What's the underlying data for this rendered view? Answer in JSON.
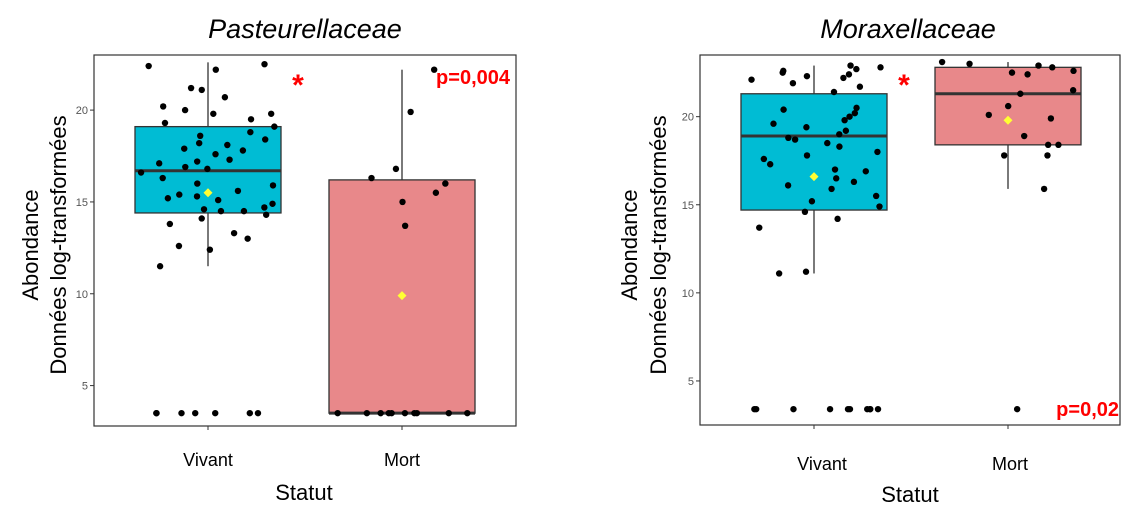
{
  "chart_data": [
    {
      "type": "box",
      "title": "Pasteurellaceae",
      "xlabel": "Statut",
      "ylabel_line1": "Abondance",
      "ylabel_line2": "Données log-transformées",
      "categories": [
        "Vivant",
        "Mort"
      ],
      "y_ticks": [
        5,
        10,
        15,
        20
      ],
      "ylim": [
        2.8,
        23.0
      ],
      "grid": false,
      "significance_marker": "*",
      "p_value": "p=0,004",
      "p_value_position": "top-right",
      "colors": {
        "Vivant": "#00BCD4",
        "Mort": "#E8888A",
        "points": "#000000",
        "mean": "#FFFF33",
        "annotation": "#FF0000"
      },
      "series": [
        {
          "name": "Vivant",
          "box": {
            "min": 11.5,
            "q1": 14.4,
            "median": 16.7,
            "q3": 19.1,
            "max": 22.6
          },
          "mean": 15.5,
          "points": [
            22.5,
            22.4,
            22.2,
            21.2,
            21.1,
            20.7,
            20.2,
            20.0,
            19.8,
            19.8,
            19.5,
            19.3,
            19.1,
            18.8,
            18.6,
            18.4,
            18.2,
            18.1,
            17.9,
            17.8,
            17.6,
            17.3,
            17.2,
            17.1,
            16.9,
            16.8,
            16.6,
            16.3,
            16.0,
            15.9,
            15.6,
            15.4,
            15.3,
            15.2,
            15.1,
            14.9,
            14.7,
            14.6,
            14.5,
            14.5,
            14.3,
            14.1,
            13.8,
            13.3,
            13.0,
            12.6,
            12.4,
            11.5,
            3.5,
            3.5,
            3.5,
            3.5,
            3.5,
            3.5,
            3.5
          ]
        },
        {
          "name": "Mort",
          "box": {
            "min": 3.5,
            "q1": 3.5,
            "median": 3.5,
            "q3": 16.2,
            "max": 22.2
          },
          "mean": 9.9,
          "points": [
            22.2,
            19.9,
            16.8,
            16.3,
            16.0,
            15.5,
            15.0,
            13.7,
            3.5,
            3.5,
            3.5,
            3.5,
            3.5,
            3.5,
            3.5,
            3.5,
            3.5,
            3.5
          ]
        }
      ]
    },
    {
      "type": "box",
      "title": "Moraxellaceae",
      "xlabel": "Statut",
      "ylabel_line1": "Abondance",
      "ylabel_line2": "Données log-transformées",
      "categories": [
        "Vivant",
        "Mort"
      ],
      "y_ticks": [
        5,
        10,
        15,
        20
      ],
      "ylim": [
        2.5,
        23.5
      ],
      "grid": false,
      "significance_marker": "*",
      "p_value": "p=0,02",
      "p_value_position": "bottom-right",
      "colors": {
        "Vivant": "#00BCD4",
        "Mort": "#E8888A",
        "points": "#000000",
        "mean": "#FFFF33",
        "annotation": "#FF0000"
      },
      "series": [
        {
          "name": "Vivant",
          "box": {
            "min": 11.1,
            "q1": 14.7,
            "median": 18.9,
            "q3": 21.3,
            "max": 22.9
          },
          "mean": 16.6,
          "points": [
            22.9,
            22.8,
            22.7,
            22.6,
            22.5,
            22.4,
            22.3,
            22.2,
            22.1,
            21.9,
            21.7,
            21.4,
            20.5,
            20.4,
            20.2,
            20.0,
            19.8,
            19.6,
            19.4,
            19.2,
            19.0,
            18.8,
            18.7,
            18.5,
            18.3,
            18.0,
            17.8,
            17.6,
            17.3,
            17.0,
            16.9,
            16.5,
            16.3,
            16.1,
            15.9,
            15.5,
            15.2,
            14.9,
            14.6,
            14.2,
            13.7,
            11.2,
            11.1,
            3.4,
            3.4,
            3.4,
            3.4,
            3.4,
            3.4,
            3.4,
            3.4,
            3.4,
            3.4
          ]
        },
        {
          "name": "Mort",
          "box": {
            "min": 15.9,
            "q1": 18.4,
            "median": 21.3,
            "q3": 22.8,
            "max": 23.1
          },
          "mean": 19.8,
          "points": [
            23.1,
            23.0,
            22.9,
            22.8,
            22.6,
            22.5,
            22.4,
            21.5,
            21.3,
            20.6,
            20.1,
            19.9,
            18.9,
            18.4,
            18.4,
            17.8,
            17.8,
            15.9,
            3.4
          ]
        }
      ]
    }
  ]
}
